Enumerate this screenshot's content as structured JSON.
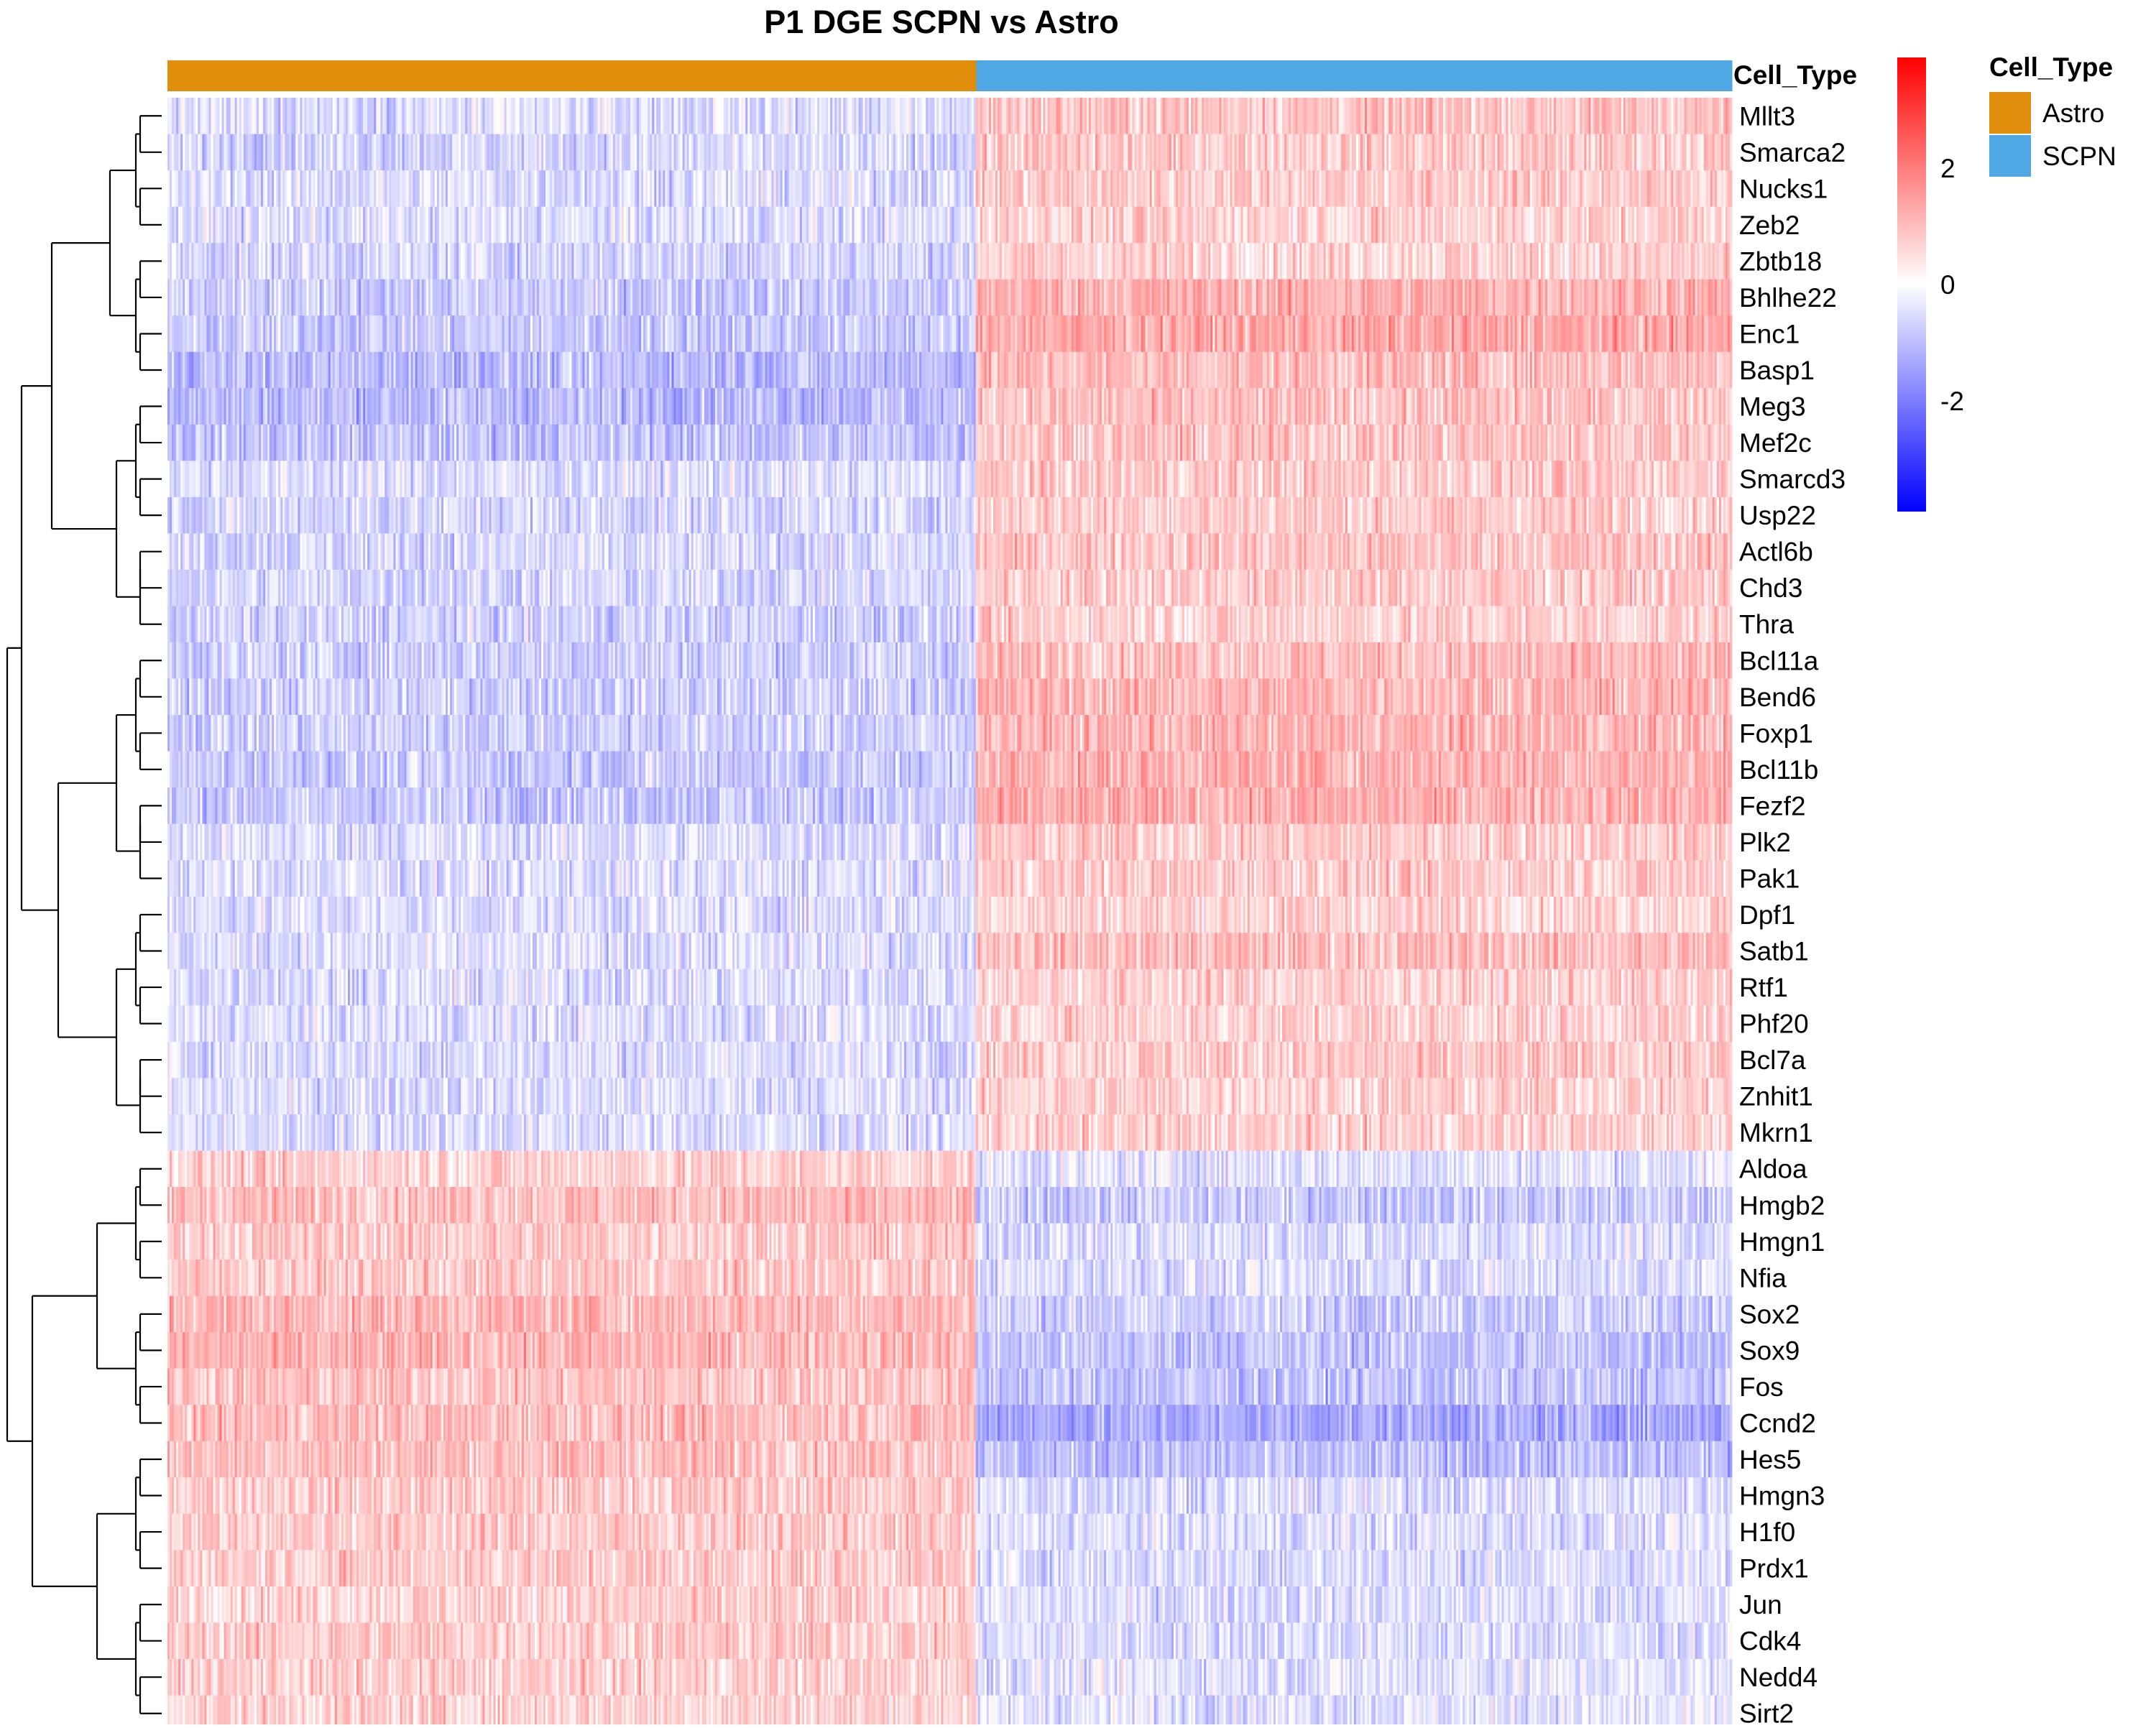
{
  "chart_data": {
    "type": "heatmap",
    "title": "P1 DGE SCPN vs Astro",
    "annotation": {
      "name": "Cell_Type",
      "groups": [
        {
          "label": "Astro",
          "color": "#E08E0B",
          "fraction": 0.517
        },
        {
          "label": "SCPN",
          "color": "#4FA8E3",
          "fraction": 0.483
        }
      ]
    },
    "legend": {
      "title": "Cell_Type",
      "items": [
        {
          "label": "Astro",
          "color": "#E08E0B"
        },
        {
          "label": "SCPN",
          "color": "#4FA8E3"
        }
      ]
    },
    "colorbar": {
      "ticks": [
        "2",
        "0",
        "-2"
      ],
      "tick_values": [
        2,
        0,
        -2
      ],
      "range": [
        -3.9,
        3.9
      ],
      "low_color": "#0000FF",
      "mid_color": "#FFFFFF",
      "high_color": "#FF0000"
    },
    "genes": [
      "Mllt3",
      "Smarca2",
      "Nucks1",
      "Zeb2",
      "Zbtb18",
      "Bhlhe22",
      "Enc1",
      "Basp1",
      "Meg3",
      "Mef2c",
      "Smarcd3",
      "Usp22",
      "Actl6b",
      "Chd3",
      "Thra",
      "Bcl11a",
      "Bend6",
      "Foxp1",
      "Bcl11b",
      "Fezf2",
      "Plk2",
      "Pak1",
      "Dpf1",
      "Satb1",
      "Rtf1",
      "Phf20",
      "Bcl7a",
      "Znhit1",
      "Mkrn1",
      "Aldoa",
      "Hmgb2",
      "Hmgn1",
      "Nfia",
      "Sox2",
      "Sox9",
      "Fos",
      "Ccnd2",
      "Hes5",
      "Hmgn3",
      "H1f0",
      "Prdx1",
      "Jun",
      "Cdk4",
      "Nedd4",
      "Sirt2"
    ],
    "mean_expression": {
      "columns": [
        "Astro",
        "SCPN"
      ],
      "values": [
        [
          -0.5,
          0.9
        ],
        [
          -0.6,
          0.8
        ],
        [
          -0.5,
          0.8
        ],
        [
          -0.5,
          0.7
        ],
        [
          -0.6,
          0.7
        ],
        [
          -0.8,
          1.2
        ],
        [
          -0.8,
          1.3
        ],
        [
          -1.0,
          1.0
        ],
        [
          -1.0,
          0.9
        ],
        [
          -0.9,
          0.9
        ],
        [
          -0.5,
          0.8
        ],
        [
          -0.6,
          0.8
        ],
        [
          -0.6,
          0.9
        ],
        [
          -0.6,
          0.8
        ],
        [
          -0.7,
          0.7
        ],
        [
          -0.7,
          1.0
        ],
        [
          -0.7,
          1.1
        ],
        [
          -0.7,
          1.1
        ],
        [
          -0.8,
          1.2
        ],
        [
          -0.8,
          1.2
        ],
        [
          -0.5,
          0.8
        ],
        [
          -0.5,
          0.8
        ],
        [
          -0.5,
          0.7
        ],
        [
          -0.5,
          1.0
        ],
        [
          -0.5,
          0.7
        ],
        [
          -0.5,
          0.7
        ],
        [
          -0.5,
          0.8
        ],
        [
          -0.5,
          0.7
        ],
        [
          -0.5,
          0.7
        ],
        [
          0.7,
          -0.4
        ],
        [
          1.0,
          -0.8
        ],
        [
          0.8,
          -0.5
        ],
        [
          0.8,
          -0.5
        ],
        [
          1.1,
          -0.7
        ],
        [
          1.1,
          -0.9
        ],
        [
          0.9,
          -0.9
        ],
        [
          1.0,
          -1.3
        ],
        [
          1.0,
          -1.0
        ],
        [
          0.8,
          -0.5
        ],
        [
          0.8,
          -0.5
        ],
        [
          0.8,
          -0.5
        ],
        [
          0.7,
          -0.5
        ],
        [
          0.8,
          -0.5
        ],
        [
          0.7,
          -0.4
        ],
        [
          0.7,
          -0.4
        ]
      ]
    },
    "row_dendrogram": true,
    "xlabel": "",
    "ylabel": ""
  }
}
